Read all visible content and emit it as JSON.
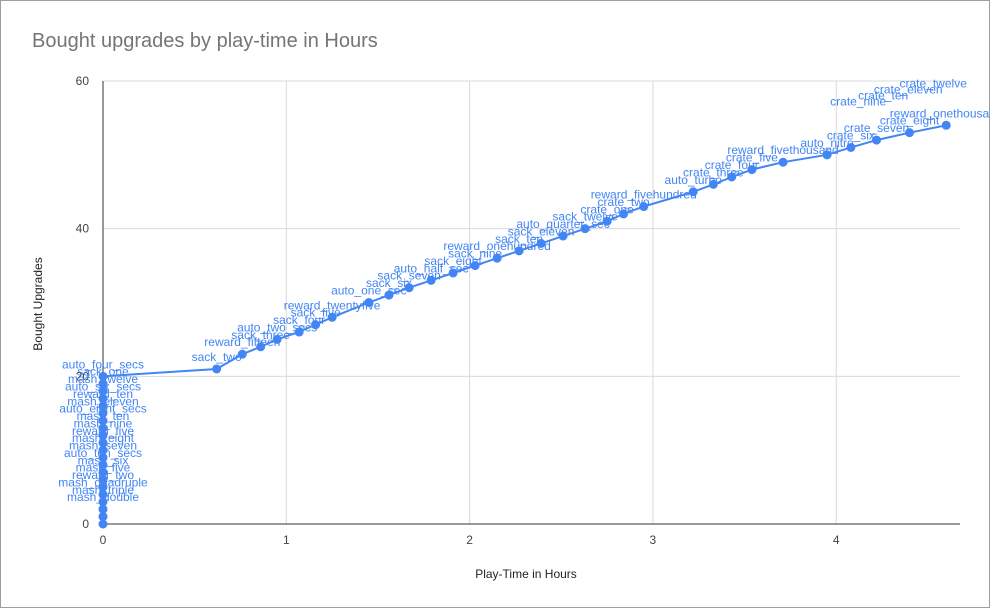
{
  "chart_data": {
    "type": "line",
    "title": "Bought upgrades by play-time in Hours",
    "xlabel": "Play-Time in Hours",
    "ylabel": "Bought Upgrades",
    "xlim": [
      0,
      4.65
    ],
    "ylim": [
      0,
      60
    ],
    "x_ticks": [
      0,
      1,
      2,
      3,
      4
    ],
    "y_ticks": [
      0,
      20,
      40,
      60
    ],
    "grid": true,
    "legend": "none",
    "series_color": "#4285f4",
    "points": [
      {
        "x": 0.0,
        "y": 0,
        "label": ""
      },
      {
        "x": 0.0,
        "y": 1,
        "label": ""
      },
      {
        "x": 0.0,
        "y": 2,
        "label": "mash_double"
      },
      {
        "x": 0.0,
        "y": 3,
        "label": "mash_triple"
      },
      {
        "x": 0.0,
        "y": 4,
        "label": "mash_quadruple"
      },
      {
        "x": 0.0,
        "y": 5,
        "label": "reward_two"
      },
      {
        "x": 0.0,
        "y": 6,
        "label": "mash_five"
      },
      {
        "x": 0.0,
        "y": 7,
        "label": "mash_six"
      },
      {
        "x": 0.0,
        "y": 8,
        "label": "auto_ten_secs"
      },
      {
        "x": 0.0,
        "y": 9,
        "label": "mash_seven"
      },
      {
        "x": 0.0,
        "y": 10,
        "label": "mash_eight"
      },
      {
        "x": 0.0,
        "y": 11,
        "label": "reward_five"
      },
      {
        "x": 0.0,
        "y": 12,
        "label": "mash_nine"
      },
      {
        "x": 0.0,
        "y": 13,
        "label": "mash_ten"
      },
      {
        "x": 0.0,
        "y": 14,
        "label": "auto_eight_secs"
      },
      {
        "x": 0.0,
        "y": 15,
        "label": "mash_eleven"
      },
      {
        "x": 0.0,
        "y": 16,
        "label": "reward_ten"
      },
      {
        "x": 0.0,
        "y": 17,
        "label": "auto_six_secs"
      },
      {
        "x": 0.0,
        "y": 18,
        "label": "mash_twelve"
      },
      {
        "x": 0.0,
        "y": 19,
        "label": "sack_one"
      },
      {
        "x": 0.0,
        "y": 20,
        "label": "auto_four_secs"
      },
      {
        "x": 0.62,
        "y": 21,
        "label": "sack_two"
      },
      {
        "x": 0.76,
        "y": 23,
        "label": "reward_fifteen"
      },
      {
        "x": 0.86,
        "y": 24,
        "label": "sack_three"
      },
      {
        "x": 0.95,
        "y": 25,
        "label": "auto_two_secs"
      },
      {
        "x": 1.07,
        "y": 26,
        "label": "sack_four"
      },
      {
        "x": 1.16,
        "y": 27,
        "label": "sack_five"
      },
      {
        "x": 1.25,
        "y": 28,
        "label": "reward_twentyfive"
      },
      {
        "x": 1.45,
        "y": 30,
        "label": "auto_one_sec"
      },
      {
        "x": 1.56,
        "y": 31,
        "label": "sack_six"
      },
      {
        "x": 1.67,
        "y": 32,
        "label": "sack_seven"
      },
      {
        "x": 1.79,
        "y": 33,
        "label": "auto_half_sec"
      },
      {
        "x": 1.91,
        "y": 34,
        "label": "sack_eight"
      },
      {
        "x": 2.03,
        "y": 35,
        "label": "sack_nine"
      },
      {
        "x": 2.15,
        "y": 36,
        "label": "reward_onehundred"
      },
      {
        "x": 2.27,
        "y": 37,
        "label": "sack_ten"
      },
      {
        "x": 2.39,
        "y": 38,
        "label": "sack_eleven"
      },
      {
        "x": 2.51,
        "y": 39,
        "label": "auto_quarter_sec"
      },
      {
        "x": 2.63,
        "y": 40,
        "label": "sack_twelve"
      },
      {
        "x": 2.75,
        "y": 41,
        "label": "crate_one"
      },
      {
        "x": 2.84,
        "y": 42,
        "label": "crate_two"
      },
      {
        "x": 2.95,
        "y": 43,
        "label": "reward_fivehundred"
      },
      {
        "x": 3.22,
        "y": 45,
        "label": "auto_turbo"
      },
      {
        "x": 3.33,
        "y": 46,
        "label": "crate_three"
      },
      {
        "x": 3.43,
        "y": 47,
        "label": "crate_four"
      },
      {
        "x": 3.54,
        "y": 48,
        "label": "crate_five"
      },
      {
        "x": 3.71,
        "y": 49,
        "label": "reward_fivethousand"
      },
      {
        "x": 3.95,
        "y": 50,
        "label": "auto_nitro"
      },
      {
        "x": 4.08,
        "y": 51,
        "label": "crate_six"
      },
      {
        "x": 4.22,
        "y": 52,
        "label": "crate_seven"
      },
      {
        "x": 4.4,
        "y": 53,
        "label": "crate_eight"
      },
      {
        "x": 4.6,
        "y": 54,
        "label": "reward_onethousand"
      }
    ],
    "annotations": [
      {
        "text": "crate_nine"
      },
      {
        "text": "crate_ten"
      },
      {
        "text": "crate_eleven"
      },
      {
        "text": "crate_twelve"
      }
    ]
  }
}
